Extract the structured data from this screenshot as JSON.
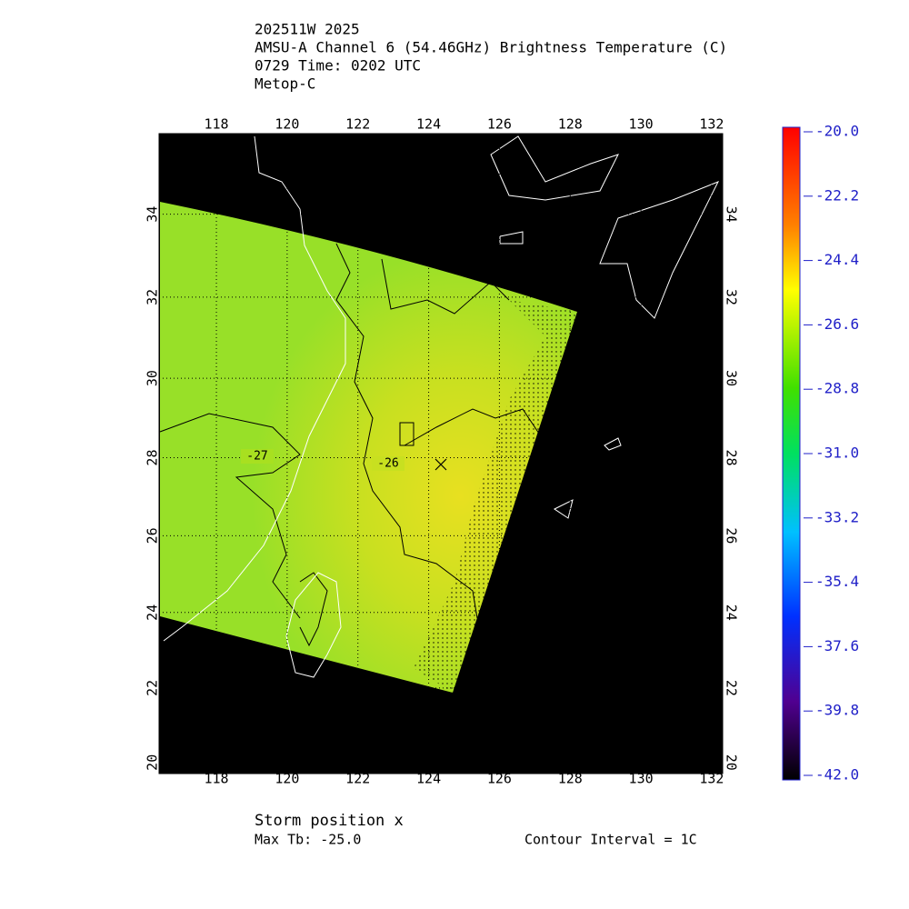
{
  "header": {
    "lines": [
      "202511W 2025",
      "AMSU-A Channel 6 (54.46GHz) Brightness Temperature (C)",
      "0729 Time: 0202 UTC",
      "Metop-C"
    ]
  },
  "map": {
    "lonlim": [
      116.38,
      132.31
    ],
    "latlim": [
      19.7,
      35.9
    ],
    "lon_ticks": [
      118,
      120,
      122,
      124,
      126,
      128,
      130,
      132
    ],
    "lat_ticks": [
      20,
      22,
      24,
      26,
      28,
      30,
      32,
      34
    ],
    "grid": true,
    "contour_labels": [
      -27,
      -26
    ]
  },
  "colorbar": {
    "lim": [
      -42,
      -20
    ],
    "ticks": [
      {
        "value": -20,
        "label": "-20.0"
      },
      {
        "value": -22.2,
        "label": "-22.2"
      },
      {
        "value": -24.4,
        "label": "-24.4"
      },
      {
        "value": -26.6,
        "label": "-26.6"
      },
      {
        "value": -28.8,
        "label": "-28.8"
      },
      {
        "value": -31,
        "label": "-31.0"
      },
      {
        "value": -33.2,
        "label": "-33.2"
      },
      {
        "value": -35.4,
        "label": "-35.4"
      },
      {
        "value": -37.6,
        "label": "-37.6"
      },
      {
        "value": -39.8,
        "label": "-39.8"
      },
      {
        "value": -42,
        "label": "-42.0"
      }
    ]
  },
  "footer": {
    "storm": "Storm position x",
    "max_tb": "Max Tb: -25.0",
    "contour_interval": "Contour Interval = 1C"
  }
}
